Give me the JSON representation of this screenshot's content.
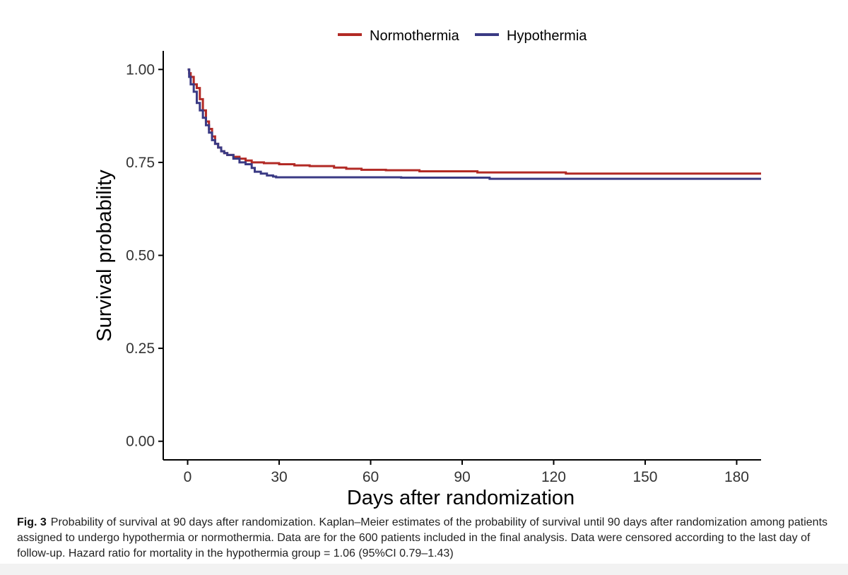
{
  "chart_data": {
    "type": "line",
    "step": true,
    "xlabel": "Days after randomization",
    "ylabel": "Survival probability",
    "xlim": [
      -8,
      188
    ],
    "ylim": [
      -0.05,
      1.05
    ],
    "x_ticks": [
      0,
      30,
      60,
      90,
      120,
      150,
      180
    ],
    "x_tick_labels": [
      "0",
      "30",
      "60",
      "90",
      "120",
      "150",
      "180"
    ],
    "y_ticks": [
      0.0,
      0.25,
      0.5,
      0.75,
      1.0
    ],
    "y_tick_labels": [
      "0.00",
      "0.25",
      "0.50",
      "0.75",
      "1.00"
    ],
    "grid": false,
    "legend_position": "top",
    "series": [
      {
        "name": "Normothermia",
        "color": "#b22a25",
        "x": [
          0,
          0.5,
          1,
          2,
          3,
          4,
          5,
          6,
          7,
          8,
          9,
          10,
          11,
          12,
          13,
          15,
          17,
          19,
          21,
          25,
          30,
          35,
          40,
          48,
          52,
          57,
          65,
          76,
          95,
          124,
          188
        ],
        "y": [
          1.0,
          0.99,
          0.98,
          0.96,
          0.95,
          0.92,
          0.89,
          0.86,
          0.84,
          0.82,
          0.8,
          0.79,
          0.78,
          0.775,
          0.77,
          0.765,
          0.76,
          0.755,
          0.75,
          0.748,
          0.745,
          0.742,
          0.74,
          0.736,
          0.733,
          0.73,
          0.729,
          0.726,
          0.723,
          0.72,
          0.72
        ]
      },
      {
        "name": "Hypothermia",
        "color": "#3a3a84",
        "x": [
          0,
          0.5,
          1,
          2,
          3,
          4,
          5,
          6,
          7,
          8,
          9,
          10,
          11,
          12,
          13,
          15,
          17,
          19,
          21,
          22,
          24,
          26,
          28,
          29,
          50,
          70,
          99,
          188
        ],
        "y": [
          1.0,
          0.98,
          0.96,
          0.94,
          0.91,
          0.89,
          0.87,
          0.85,
          0.83,
          0.81,
          0.8,
          0.79,
          0.78,
          0.775,
          0.77,
          0.76,
          0.75,
          0.745,
          0.735,
          0.725,
          0.72,
          0.715,
          0.712,
          0.71,
          0.71,
          0.709,
          0.706,
          0.706
        ]
      }
    ]
  },
  "caption": {
    "label": "Fig. 3",
    "text": "Probability of survival at 90 days after randomization. Kaplan–Meier estimates of the probability of survival until 90 days after randomization among patients assigned to undergo hypothermia or normothermia. Data are for the 600 patients included in the final analysis. Data were censored according to the last day of follow-up. Hazard ratio for mortality in the hypothermia group = 1.06 (95%CI 0.79–1.43)"
  }
}
